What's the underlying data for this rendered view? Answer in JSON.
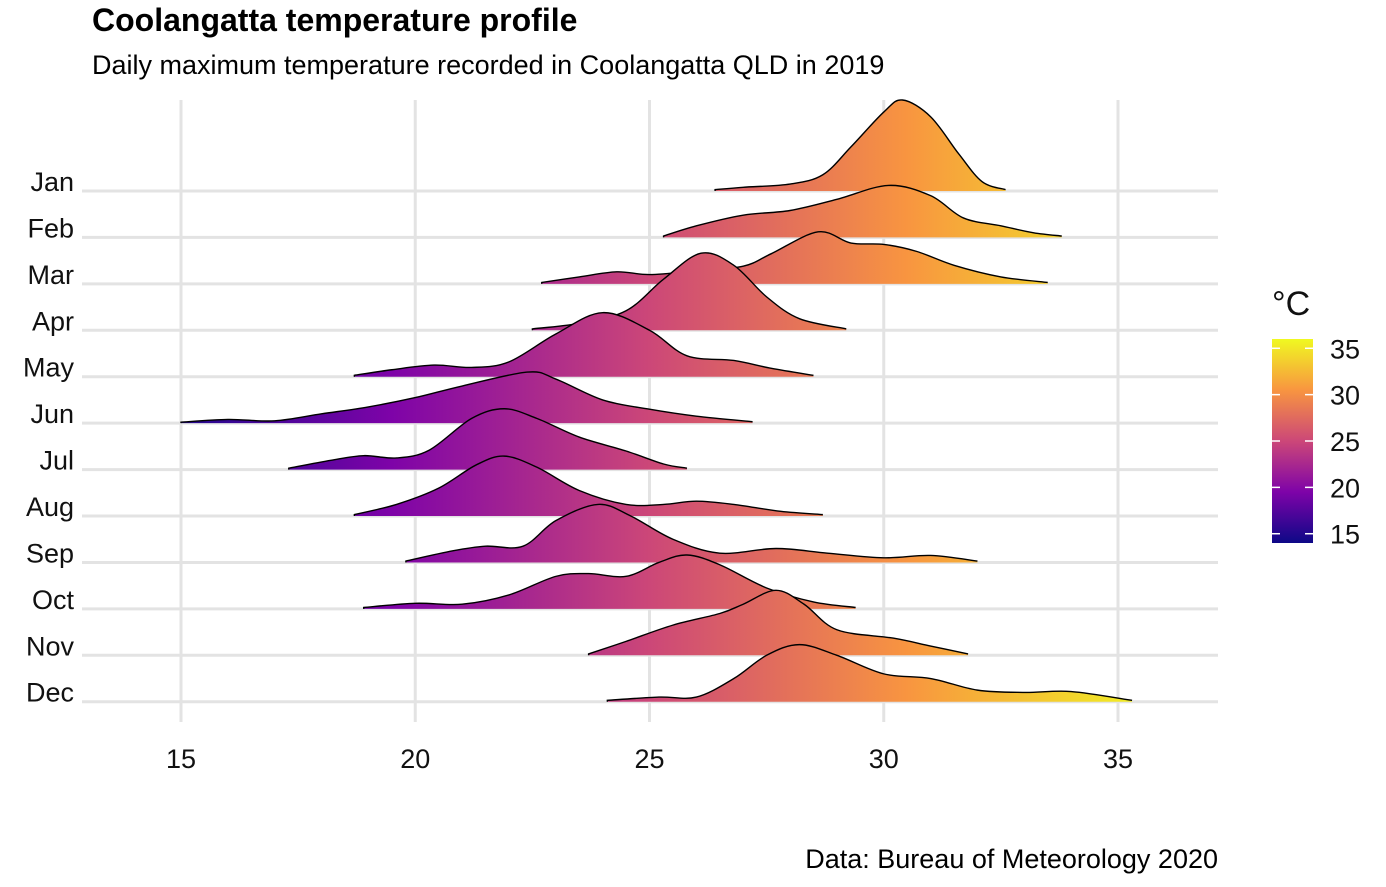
{
  "chart_data": {
    "type": "ridgeline",
    "title": "Coolangatta temperature profile",
    "subtitle": "Daily maximum temperature recorded in Coolangatta QLD in 2019",
    "caption": "Data: Bureau of Meteorology 2020",
    "xlabel": "",
    "ylabel": "",
    "xlim": [
      13,
      37
    ],
    "x_ticks": [
      15,
      20,
      25,
      30,
      35
    ],
    "x_tick_labels": [
      "15",
      "20",
      "25",
      "30",
      "35"
    ],
    "grid": true,
    "legend": {
      "title": "°C",
      "placement": "right",
      "ticks": [
        15,
        20,
        25,
        30,
        35
      ],
      "tick_labels": [
        "15",
        "20",
        "25",
        "30",
        "35"
      ],
      "range": [
        14,
        36
      ],
      "palette": [
        "#0d0887",
        "#7e03a8",
        "#cc4778",
        "#f89540",
        "#f0f921"
      ]
    },
    "density_unit": "relative height (1 = one row spacing)",
    "series": [
      {
        "name": "Jan",
        "points": [
          [
            26.4,
            0.03
          ],
          [
            27,
            0.08
          ],
          [
            28,
            0.15
          ],
          [
            28.7,
            0.35
          ],
          [
            29.3,
            0.95
          ],
          [
            30,
            1.7
          ],
          [
            30.4,
            1.96
          ],
          [
            31,
            1.6
          ],
          [
            31.6,
            0.8
          ],
          [
            32.1,
            0.2
          ],
          [
            32.6,
            0.03
          ]
        ]
      },
      {
        "name": "Feb",
        "points": [
          [
            25.3,
            0.03
          ],
          [
            26,
            0.25
          ],
          [
            27,
            0.48
          ],
          [
            28,
            0.58
          ],
          [
            29,
            0.82
          ],
          [
            30.1,
            1.12
          ],
          [
            31,
            0.9
          ],
          [
            31.7,
            0.42
          ],
          [
            32.5,
            0.25
          ],
          [
            33.2,
            0.1
          ],
          [
            33.8,
            0.03
          ]
        ]
      },
      {
        "name": "Mar",
        "points": [
          [
            22.7,
            0.03
          ],
          [
            23.5,
            0.15
          ],
          [
            24.3,
            0.26
          ],
          [
            25,
            0.2
          ],
          [
            26,
            0.28
          ],
          [
            27,
            0.38
          ],
          [
            27.6,
            0.65
          ],
          [
            28.6,
            1.12
          ],
          [
            29.3,
            0.88
          ],
          [
            30,
            0.85
          ],
          [
            30.7,
            0.7
          ],
          [
            31.5,
            0.4
          ],
          [
            32.5,
            0.15
          ],
          [
            33.5,
            0.03
          ]
        ]
      },
      {
        "name": "Apr",
        "points": [
          [
            22.5,
            0.03
          ],
          [
            23.5,
            0.15
          ],
          [
            24.5,
            0.42
          ],
          [
            25.3,
            1.1
          ],
          [
            26.1,
            1.66
          ],
          [
            26.8,
            1.4
          ],
          [
            27.5,
            0.72
          ],
          [
            28.2,
            0.25
          ],
          [
            29.2,
            0.03
          ]
        ]
      },
      {
        "name": "May",
        "points": [
          [
            18.7,
            0.03
          ],
          [
            19.5,
            0.15
          ],
          [
            20.4,
            0.25
          ],
          [
            21.2,
            0.2
          ],
          [
            22,
            0.32
          ],
          [
            23,
            0.92
          ],
          [
            24,
            1.38
          ],
          [
            25,
            1.0
          ],
          [
            25.8,
            0.45
          ],
          [
            26.8,
            0.35
          ],
          [
            27.6,
            0.18
          ],
          [
            28.5,
            0.03
          ]
        ]
      },
      {
        "name": "Jun",
        "points": [
          [
            15,
            0.02
          ],
          [
            16,
            0.08
          ],
          [
            17,
            0.05
          ],
          [
            18,
            0.2
          ],
          [
            19,
            0.35
          ],
          [
            20,
            0.55
          ],
          [
            21,
            0.8
          ],
          [
            22.4,
            1.1
          ],
          [
            23,
            0.95
          ],
          [
            24,
            0.5
          ],
          [
            25,
            0.3
          ],
          [
            26,
            0.15
          ],
          [
            27.2,
            0.03
          ]
        ]
      },
      {
        "name": "Jul",
        "points": [
          [
            17.3,
            0.03
          ],
          [
            18.2,
            0.2
          ],
          [
            18.9,
            0.3
          ],
          [
            19.6,
            0.25
          ],
          [
            20.3,
            0.42
          ],
          [
            21.2,
            1.1
          ],
          [
            21.9,
            1.31
          ],
          [
            22.6,
            1.1
          ],
          [
            23.5,
            0.7
          ],
          [
            24.5,
            0.4
          ],
          [
            25.3,
            0.12
          ],
          [
            25.8,
            0.03
          ]
        ]
      },
      {
        "name": "Aug",
        "points": [
          [
            18.7,
            0.03
          ],
          [
            19.6,
            0.25
          ],
          [
            20.5,
            0.6
          ],
          [
            21.3,
            1.1
          ],
          [
            21.9,
            1.29
          ],
          [
            22.6,
            1.05
          ],
          [
            23.5,
            0.55
          ],
          [
            24.5,
            0.25
          ],
          [
            25.3,
            0.25
          ],
          [
            26,
            0.32
          ],
          [
            26.8,
            0.25
          ],
          [
            27.8,
            0.1
          ],
          [
            28.7,
            0.03
          ]
        ]
      },
      {
        "name": "Sep",
        "points": [
          [
            19.8,
            0.03
          ],
          [
            20.8,
            0.25
          ],
          [
            21.5,
            0.35
          ],
          [
            22.3,
            0.35
          ],
          [
            23,
            0.9
          ],
          [
            23.9,
            1.25
          ],
          [
            24.6,
            1.0
          ],
          [
            25.5,
            0.5
          ],
          [
            26.5,
            0.2
          ],
          [
            27.7,
            0.3
          ],
          [
            28.8,
            0.2
          ],
          [
            30,
            0.1
          ],
          [
            31,
            0.15
          ],
          [
            32,
            0.03
          ]
        ]
      },
      {
        "name": "Oct",
        "points": [
          [
            18.9,
            0.03
          ],
          [
            20,
            0.12
          ],
          [
            21,
            0.1
          ],
          [
            22,
            0.3
          ],
          [
            23,
            0.7
          ],
          [
            23.7,
            0.76
          ],
          [
            24.5,
            0.7
          ],
          [
            25.2,
            1.0
          ],
          [
            25.8,
            1.16
          ],
          [
            26.5,
            0.95
          ],
          [
            27.5,
            0.45
          ],
          [
            28.5,
            0.15
          ],
          [
            29.4,
            0.03
          ]
        ]
      },
      {
        "name": "Nov",
        "points": [
          [
            23.7,
            0.03
          ],
          [
            24.5,
            0.3
          ],
          [
            25.5,
            0.65
          ],
          [
            26.5,
            0.9
          ],
          [
            27,
            1.1
          ],
          [
            27.7,
            1.4
          ],
          [
            28.3,
            1.1
          ],
          [
            29,
            0.55
          ],
          [
            30.2,
            0.37
          ],
          [
            31,
            0.2
          ],
          [
            31.8,
            0.03
          ]
        ]
      },
      {
        "name": "Dec",
        "points": [
          [
            24.1,
            0.03
          ],
          [
            25.2,
            0.1
          ],
          [
            26,
            0.1
          ],
          [
            26.8,
            0.5
          ],
          [
            27.5,
            1.0
          ],
          [
            28.2,
            1.23
          ],
          [
            29,
            1.0
          ],
          [
            30,
            0.6
          ],
          [
            31,
            0.5
          ],
          [
            32,
            0.25
          ],
          [
            33,
            0.2
          ],
          [
            34,
            0.22
          ],
          [
            35.3,
            0.03
          ]
        ]
      }
    ]
  }
}
